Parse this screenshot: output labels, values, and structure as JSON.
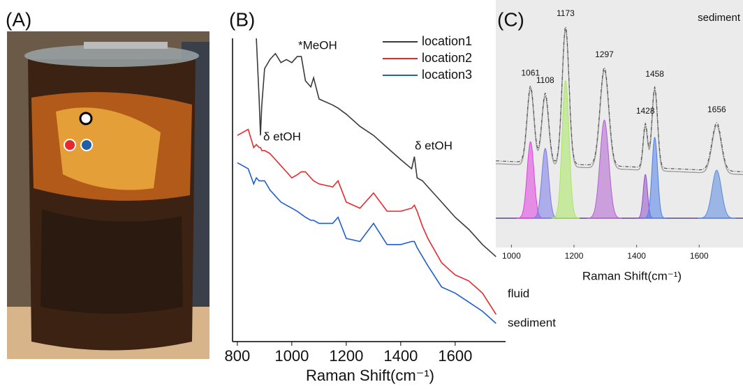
{
  "photo": {
    "panel_label": "(A)"
  },
  "chart_data": [
    {
      "type": "line",
      "panel_label": "(B)",
      "xlabel": "Raman Shift(cm⁻¹)",
      "x": [
        800,
        840,
        860,
        870,
        880,
        885,
        890,
        900,
        920,
        940,
        960,
        980,
        1000,
        1020,
        1035,
        1050,
        1070,
        1080,
        1100,
        1150,
        1170,
        1200,
        1250,
        1300,
        1350,
        1400,
        1440,
        1450,
        1460,
        1480,
        1500,
        1550,
        1600,
        1650,
        1700,
        1750
      ],
      "series": [
        {
          "name": "location1",
          "color": "#3a3a3a",
          "values": [
            null,
            null,
            null,
            100,
            80,
            68,
            78,
            90,
            93,
            95,
            92,
            93,
            92,
            94,
            94,
            86,
            84,
            87,
            80,
            78,
            77,
            75,
            71,
            68,
            64,
            60,
            57,
            61,
            54,
            53,
            51,
            46,
            41,
            37,
            32,
            28
          ]
        },
        {
          "name": "location2",
          "color": "#e8282d",
          "values": [
            68,
            70,
            64,
            65,
            64,
            64,
            63,
            63,
            62,
            60,
            58,
            56,
            54,
            55,
            56,
            56,
            54,
            53,
            52,
            51,
            53,
            46,
            44,
            49,
            43,
            43,
            44,
            45,
            43,
            38,
            34,
            26,
            22,
            20,
            16,
            9
          ]
        },
        {
          "name": "location3",
          "color": "#1f5fc9",
          "values": [
            59,
            57,
            52,
            54,
            53,
            53,
            53,
            53,
            50,
            48,
            46,
            45,
            44,
            43,
            42,
            41,
            40,
            40,
            39,
            39,
            41,
            34,
            33,
            39,
            32,
            32,
            33,
            33,
            31,
            28,
            25,
            18,
            16,
            13,
            10,
            6
          ]
        }
      ],
      "annotations": [
        "*MeOH",
        "δ etOH",
        "δ etOH",
        "fluid",
        "sediment"
      ],
      "xlim": [
        785,
        1785
      ],
      "xticks": [
        800,
        1000,
        1200,
        1400,
        1600
      ],
      "ylim": [
        0,
        100
      ],
      "legend": "upper right"
    },
    {
      "type": "peak-fit",
      "panel_label": "(C)",
      "title": "sediment",
      "xlabel": "Raman Shift(cm⁻¹)",
      "baseline": [
        25,
        20
      ],
      "peaks": [
        {
          "center": 1061,
          "height": 35,
          "width": 11,
          "color": "#e040e0"
        },
        {
          "center": 1108,
          "height": 32,
          "width": 11,
          "color": "#7a7ae8"
        },
        {
          "center": 1173,
          "height": 63,
          "width": 11,
          "color": "#a8e860"
        },
        {
          "center": 1297,
          "height": 45,
          "width": 14,
          "color": "#b060d0"
        },
        {
          "center": 1428,
          "height": 20,
          "width": 7,
          "color": "#9050c8"
        },
        {
          "center": 1458,
          "height": 37,
          "width": 9,
          "color": "#5080e8"
        },
        {
          "center": 1656,
          "height": 22,
          "width": 15,
          "color": "#5a88e0"
        }
      ],
      "xlim": [
        950,
        1740
      ],
      "xticks": [
        1000,
        1200,
        1400,
        1600
      ],
      "ylim": [
        0,
        100
      ]
    }
  ]
}
